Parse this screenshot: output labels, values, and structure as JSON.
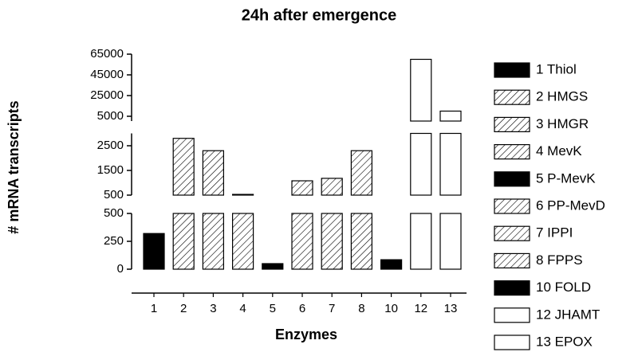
{
  "chart_data": {
    "type": "bar",
    "title": "24h after emergence",
    "x_label": "Enzymes",
    "y_label": "# mRNA transcripts",
    "categories": [
      "1",
      "2",
      "3",
      "4",
      "5",
      "6",
      "7",
      "8",
      "10",
      "12",
      "13"
    ],
    "values": [
      320,
      2800,
      2300,
      530,
      50,
      1080,
      1180,
      2300,
      85,
      60000,
      10000
    ],
    "fills": [
      "solid",
      "hatch",
      "hatch",
      "hatch",
      "solid",
      "hatch",
      "hatch",
      "hatch",
      "solid",
      "open",
      "open"
    ],
    "color": "#000000",
    "legend": [
      "1 Thiol",
      "2 HMGS",
      "3 HMGR",
      "4 MevK",
      "5 P-MevK",
      "6 PP-MevD",
      "7 IPPI",
      "8 FPPS",
      "10 FOLD",
      "12 JHAMT",
      "13 EPOX"
    ],
    "y_segments": [
      {
        "ylim": [
          0,
          500
        ],
        "yticks": [
          0,
          250,
          500
        ]
      },
      {
        "ylim": [
          500,
          3000
        ],
        "yticks": [
          500,
          1500,
          2500
        ]
      },
      {
        "ylim": [
          5000,
          65000
        ],
        "yticks": [
          5000,
          25000,
          45000,
          65000
        ]
      }
    ]
  }
}
